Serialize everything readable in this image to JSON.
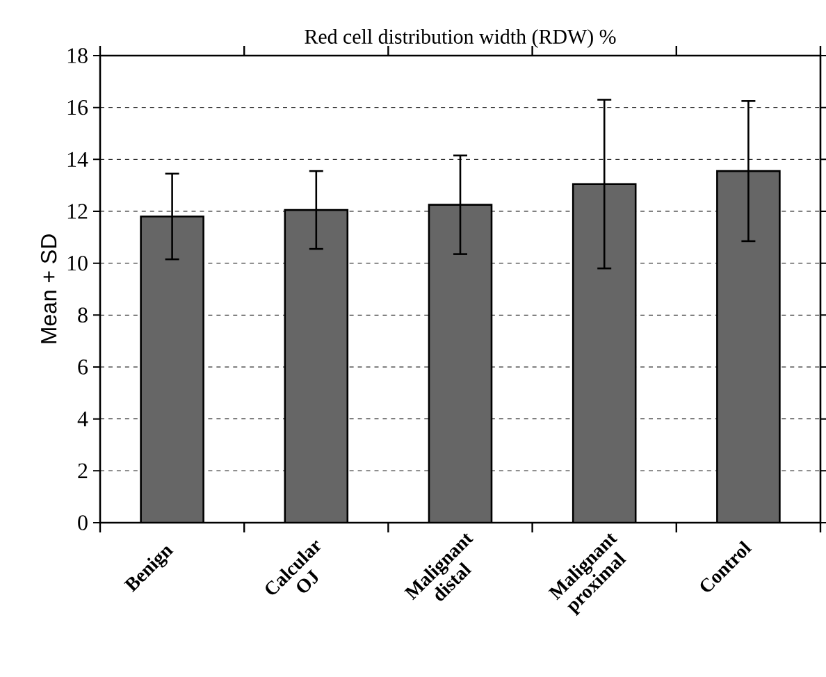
{
  "chart_data": {
    "type": "bar",
    "title": "Red cell distribution width (RDW) %",
    "ylabel": "Mean + SD",
    "categories": [
      "Benign",
      "Calcular OJ",
      "Malignant distal",
      "Malignant proximal",
      "Control"
    ],
    "values": [
      11.8,
      12.05,
      12.25,
      13.05,
      13.55
    ],
    "errors": [
      1.65,
      1.5,
      1.9,
      3.25,
      2.7
    ],
    "color": "#666666",
    "ylim": [
      0,
      18
    ],
    "yticks": [
      0,
      2,
      4,
      6,
      8,
      10,
      12,
      14,
      16,
      18
    ],
    "grid": "y"
  }
}
